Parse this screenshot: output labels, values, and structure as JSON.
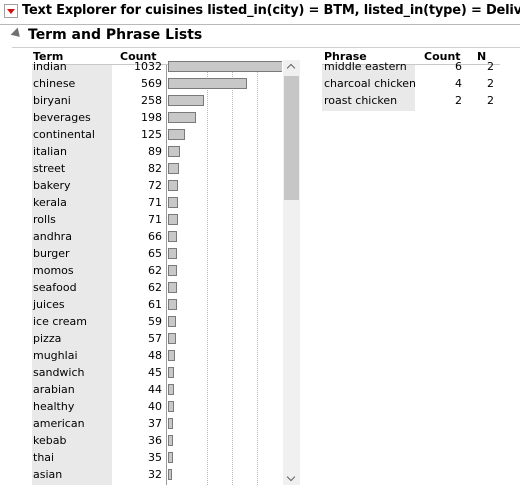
{
  "window": {
    "title": "Text Explorer for cuisines listed_in(city) = BTM, listed_in(type) = Delivery"
  },
  "section": {
    "title": "Term and Phrase Lists"
  },
  "term_table": {
    "headers": {
      "term": "Term",
      "count": "Count"
    },
    "max_count": 1032,
    "rows": [
      {
        "term": "indian",
        "count": "1032",
        "value": 1032
      },
      {
        "term": "chinese",
        "count": "569",
        "value": 569
      },
      {
        "term": "biryani",
        "count": "258",
        "value": 258
      },
      {
        "term": "beverages",
        "count": "198",
        "value": 198
      },
      {
        "term": "continental",
        "count": "125",
        "value": 125
      },
      {
        "term": "italian",
        "count": "89",
        "value": 89
      },
      {
        "term": "street",
        "count": "82",
        "value": 82
      },
      {
        "term": "bakery",
        "count": "72",
        "value": 72
      },
      {
        "term": "kerala",
        "count": "71",
        "value": 71
      },
      {
        "term": "rolls",
        "count": "71",
        "value": 71
      },
      {
        "term": "andhra",
        "count": "66",
        "value": 66
      },
      {
        "term": "burger",
        "count": "65",
        "value": 65
      },
      {
        "term": "momos",
        "count": "62",
        "value": 62
      },
      {
        "term": "seafood",
        "count": "62",
        "value": 62
      },
      {
        "term": "juices",
        "count": "61",
        "value": 61
      },
      {
        "term": "ice cream",
        "count": "59",
        "value": 59
      },
      {
        "term": "pizza",
        "count": "57",
        "value": 57
      },
      {
        "term": "mughlai",
        "count": "48",
        "value": 48
      },
      {
        "term": "sandwich",
        "count": "45",
        "value": 45
      },
      {
        "term": "arabian",
        "count": "44",
        "value": 44
      },
      {
        "term": "healthy",
        "count": "40",
        "value": 40
      },
      {
        "term": "american",
        "count": "37",
        "value": 37
      },
      {
        "term": "kebab",
        "count": "36",
        "value": 36
      },
      {
        "term": "thai",
        "count": "35",
        "value": 35
      },
      {
        "term": "asian",
        "count": "32",
        "value": 32
      }
    ]
  },
  "phrase_table": {
    "headers": {
      "phrase": "Phrase",
      "count": "Count",
      "n": "N"
    },
    "rows": [
      {
        "phrase": "middle eastern",
        "count": "6",
        "n": "2"
      },
      {
        "phrase": "charcoal chicken",
        "count": "4",
        "n": "2"
      },
      {
        "phrase": "roast chicken",
        "count": "2",
        "n": "2"
      }
    ]
  },
  "scrollbar": {
    "position_fraction": 0.0,
    "visible_fraction": 0.3
  }
}
